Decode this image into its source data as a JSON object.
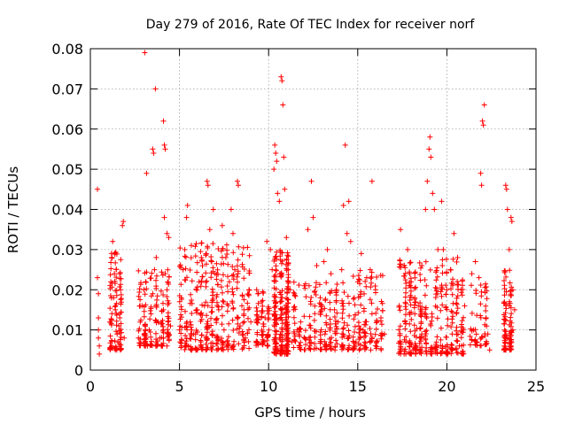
{
  "chart_data": {
    "type": "scatter",
    "title": "Day 279 of 2016, Rate Of TEC Index for receiver norf",
    "xlabel": "GPS time / hours",
    "ylabel": "ROTI / TECUs",
    "xlim": [
      0,
      25
    ],
    "ylim": [
      0,
      0.08
    ],
    "x_ticks": [
      0,
      5,
      10,
      15,
      20,
      25
    ],
    "x_tick_labels": [
      "0",
      "5",
      "10",
      "15",
      "20",
      "25"
    ],
    "y_ticks": [
      0,
      0.01,
      0.02,
      0.03,
      0.04,
      0.05,
      0.06,
      0.07,
      0.08
    ],
    "y_tick_labels": [
      "0",
      "0.01",
      "0.02",
      "0.03",
      "0.04",
      "0.05",
      "0.06",
      "0.07",
      "0.08"
    ],
    "grid": true,
    "marker": "+",
    "color": "#ff0000",
    "series": [
      {
        "name": "ROTI",
        "points": [
          [
            0.4,
            0.045
          ],
          [
            0.4,
            0.023
          ],
          [
            0.45,
            0.019
          ],
          [
            0.45,
            0.013
          ],
          [
            0.45,
            0.01
          ],
          [
            0.45,
            0.008
          ],
          [
            0.5,
            0.006
          ],
          [
            0.5,
            0.004
          ],
          [
            1.1,
            0.012
          ],
          [
            1.15,
            0.022
          ],
          [
            1.2,
            0.028
          ],
          [
            1.25,
            0.032
          ],
          [
            1.3,
            0.018
          ],
          [
            1.35,
            0.024
          ],
          [
            1.4,
            0.015
          ],
          [
            1.5,
            0.009
          ],
          [
            1.55,
            0.007
          ],
          [
            1.6,
            0.011
          ],
          [
            1.7,
            0.02
          ],
          [
            1.8,
            0.036
          ],
          [
            1.85,
            0.037
          ],
          [
            1.9,
            0.008
          ],
          [
            1.2,
            0.006
          ],
          [
            1.4,
            0.005
          ],
          [
            1.65,
            0.013
          ],
          [
            2.7,
            0.008
          ],
          [
            2.8,
            0.012
          ],
          [
            2.9,
            0.016
          ],
          [
            3.0,
            0.02
          ],
          [
            3.1,
            0.022
          ],
          [
            3.2,
            0.006
          ],
          [
            3.3,
            0.01
          ],
          [
            3.4,
            0.014
          ],
          [
            3.5,
            0.019
          ],
          [
            3.6,
            0.025
          ],
          [
            3.7,
            0.028
          ],
          [
            3.8,
            0.012
          ],
          [
            3.9,
            0.008
          ],
          [
            4.1,
            0.015
          ],
          [
            4.2,
            0.024
          ],
          [
            4.3,
            0.02
          ],
          [
            4.4,
            0.033
          ],
          [
            4.5,
            0.011
          ],
          [
            3.05,
            0.079
          ],
          [
            3.15,
            0.049
          ],
          [
            3.5,
            0.055
          ],
          [
            3.55,
            0.054
          ],
          [
            3.65,
            0.07
          ],
          [
            4.1,
            0.062
          ],
          [
            4.15,
            0.056
          ],
          [
            4.2,
            0.055
          ],
          [
            4.15,
            0.038
          ],
          [
            4.3,
            0.034
          ],
          [
            5.0,
            0.01
          ],
          [
            5.1,
            0.018
          ],
          [
            5.2,
            0.025
          ],
          [
            5.3,
            0.03
          ],
          [
            5.4,
            0.038
          ],
          [
            5.45,
            0.041
          ],
          [
            5.6,
            0.012
          ],
          [
            5.8,
            0.009
          ],
          [
            6.0,
            0.015
          ],
          [
            6.1,
            0.022
          ],
          [
            6.2,
            0.006
          ],
          [
            6.4,
            0.016
          ],
          [
            6.55,
            0.047
          ],
          [
            6.6,
            0.046
          ],
          [
            6.7,
            0.035
          ],
          [
            6.8,
            0.027
          ],
          [
            6.9,
            0.04
          ],
          [
            7.0,
            0.024
          ],
          [
            7.2,
            0.015
          ],
          [
            7.4,
            0.036
          ],
          [
            7.6,
            0.028
          ],
          [
            7.8,
            0.022
          ],
          [
            7.9,
            0.04
          ],
          [
            8.0,
            0.034
          ],
          [
            8.1,
            0.025
          ],
          [
            8.25,
            0.047
          ],
          [
            8.3,
            0.046
          ],
          [
            8.5,
            0.016
          ],
          [
            8.7,
            0.008
          ],
          [
            8.9,
            0.02
          ],
          [
            9.0,
            0.012
          ],
          [
            5.5,
            0.006
          ],
          [
            6.5,
            0.008
          ],
          [
            7.1,
            0.005
          ],
          [
            7.5,
            0.01
          ],
          [
            8.4,
            0.011
          ],
          [
            9.4,
            0.019
          ],
          [
            9.6,
            0.017
          ],
          [
            9.8,
            0.013
          ],
          [
            9.9,
            0.032
          ],
          [
            10.1,
            0.03
          ],
          [
            10.2,
            0.025
          ],
          [
            10.3,
            0.05
          ],
          [
            10.35,
            0.056
          ],
          [
            10.4,
            0.054
          ],
          [
            10.45,
            0.052
          ],
          [
            10.5,
            0.044
          ],
          [
            10.6,
            0.042
          ],
          [
            10.7,
            0.073
          ],
          [
            10.75,
            0.072
          ],
          [
            10.8,
            0.066
          ],
          [
            10.85,
            0.053
          ],
          [
            10.9,
            0.045
          ],
          [
            11.0,
            0.033
          ],
          [
            11.1,
            0.025
          ],
          [
            11.2,
            0.02
          ],
          [
            11.4,
            0.015
          ],
          [
            11.6,
            0.01
          ],
          [
            11.8,
            0.012
          ],
          [
            12.0,
            0.021
          ],
          [
            12.2,
            0.035
          ],
          [
            12.4,
            0.047
          ],
          [
            12.5,
            0.038
          ],
          [
            12.7,
            0.026
          ],
          [
            12.9,
            0.018
          ],
          [
            13.1,
            0.027
          ],
          [
            13.3,
            0.03
          ],
          [
            13.5,
            0.024
          ],
          [
            13.7,
            0.015
          ],
          [
            13.9,
            0.012
          ],
          [
            10.5,
            0.005
          ],
          [
            10.6,
            0.008
          ],
          [
            10.9,
            0.004
          ],
          [
            11.3,
            0.007
          ],
          [
            14.1,
            0.025
          ],
          [
            14.2,
            0.041
          ],
          [
            14.3,
            0.056
          ],
          [
            14.4,
            0.034
          ],
          [
            14.5,
            0.042
          ],
          [
            14.6,
            0.032
          ],
          [
            14.8,
            0.018
          ],
          [
            15.0,
            0.022
          ],
          [
            15.2,
            0.029
          ],
          [
            15.5,
            0.023
          ],
          [
            15.7,
            0.025
          ],
          [
            15.8,
            0.047
          ],
          [
            16.0,
            0.02
          ],
          [
            16.3,
            0.013
          ],
          [
            16.5,
            0.009
          ],
          [
            14.9,
            0.007
          ],
          [
            15.3,
            0.01
          ],
          [
            17.4,
            0.035
          ],
          [
            17.6,
            0.026
          ],
          [
            17.8,
            0.03
          ],
          [
            18.0,
            0.022
          ],
          [
            18.2,
            0.018
          ],
          [
            18.4,
            0.016
          ],
          [
            18.6,
            0.026
          ],
          [
            18.8,
            0.04
          ],
          [
            18.9,
            0.047
          ],
          [
            19.0,
            0.055
          ],
          [
            19.05,
            0.058
          ],
          [
            19.1,
            0.053
          ],
          [
            19.2,
            0.044
          ],
          [
            19.3,
            0.04
          ],
          [
            19.5,
            0.03
          ],
          [
            19.7,
            0.042
          ],
          [
            19.8,
            0.03
          ],
          [
            20.0,
            0.02
          ],
          [
            20.2,
            0.025
          ],
          [
            20.4,
            0.034
          ],
          [
            20.6,
            0.028
          ],
          [
            20.8,
            0.02
          ],
          [
            21.0,
            0.016
          ],
          [
            17.7,
            0.007
          ],
          [
            18.1,
            0.005
          ],
          [
            18.5,
            0.008
          ],
          [
            19.4,
            0.006
          ],
          [
            20.3,
            0.009
          ],
          [
            20.7,
            0.006
          ],
          [
            21.4,
            0.024
          ],
          [
            21.6,
            0.027
          ],
          [
            21.8,
            0.023
          ],
          [
            21.9,
            0.049
          ],
          [
            21.95,
            0.046
          ],
          [
            22.0,
            0.062
          ],
          [
            22.05,
            0.061
          ],
          [
            22.1,
            0.066
          ],
          [
            22.2,
            0.013
          ],
          [
            22.4,
            0.005
          ],
          [
            21.5,
            0.01
          ],
          [
            21.7,
            0.007
          ],
          [
            22.3,
            0.009
          ],
          [
            23.3,
            0.046
          ],
          [
            23.35,
            0.045
          ],
          [
            23.4,
            0.04
          ],
          [
            23.5,
            0.03
          ],
          [
            23.6,
            0.038
          ],
          [
            23.65,
            0.037
          ],
          [
            23.7,
            0.02
          ],
          [
            23.8,
            0.015
          ],
          [
            23.4,
            0.008
          ],
          [
            23.6,
            0.006
          ],
          [
            23.7,
            0.01
          ]
        ]
      }
    ],
    "dense_clusters": [
      {
        "x_range": [
          1.1,
          1.9
        ],
        "y_range": [
          0.005,
          0.03
        ],
        "count": 90
      },
      {
        "x_range": [
          2.7,
          4.6
        ],
        "y_range": [
          0.006,
          0.025
        ],
        "count": 140
      },
      {
        "x_range": [
          5.0,
          9.1
        ],
        "y_range": [
          0.005,
          0.032
        ],
        "count": 330
      },
      {
        "x_range": [
          9.3,
          10.2
        ],
        "y_range": [
          0.006,
          0.02
        ],
        "count": 70
      },
      {
        "x_range": [
          10.3,
          11.3
        ],
        "y_range": [
          0.004,
          0.03
        ],
        "count": 220
      },
      {
        "x_range": [
          11.4,
          14.0
        ],
        "y_range": [
          0.005,
          0.022
        ],
        "count": 160
      },
      {
        "x_range": [
          14.1,
          16.6
        ],
        "y_range": [
          0.005,
          0.025
        ],
        "count": 150
      },
      {
        "x_range": [
          17.3,
          21.1
        ],
        "y_range": [
          0.004,
          0.028
        ],
        "count": 330
      },
      {
        "x_range": [
          21.3,
          22.4
        ],
        "y_range": [
          0.006,
          0.022
        ],
        "count": 50
      },
      {
        "x_range": [
          23.2,
          23.8
        ],
        "y_range": [
          0.005,
          0.025
        ],
        "count": 90
      }
    ]
  }
}
